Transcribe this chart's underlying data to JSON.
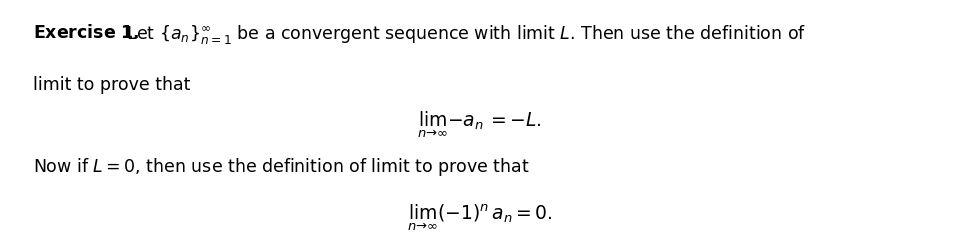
{
  "background_color": "#ffffff",
  "line1_bold": "Exercise 1.",
  "line1_rest": " Let $\\{a_n\\}_{n=1}^{\\infty}$ be a convergent sequence with limit $L$. Then use the definition of",
  "line2": "limit to prove that",
  "eq1": "$\\lim_{n\\to\\infty} -a_n = -L.$",
  "line3": "Now if $L = 0$, then use the definition of limit to prove that",
  "eq2": "$\\lim_{n\\to\\infty} (-1)^n a_n = 0.$",
  "fontsize_text": 12.5,
  "fontsize_eq": 13.5,
  "text_color": "#000000"
}
